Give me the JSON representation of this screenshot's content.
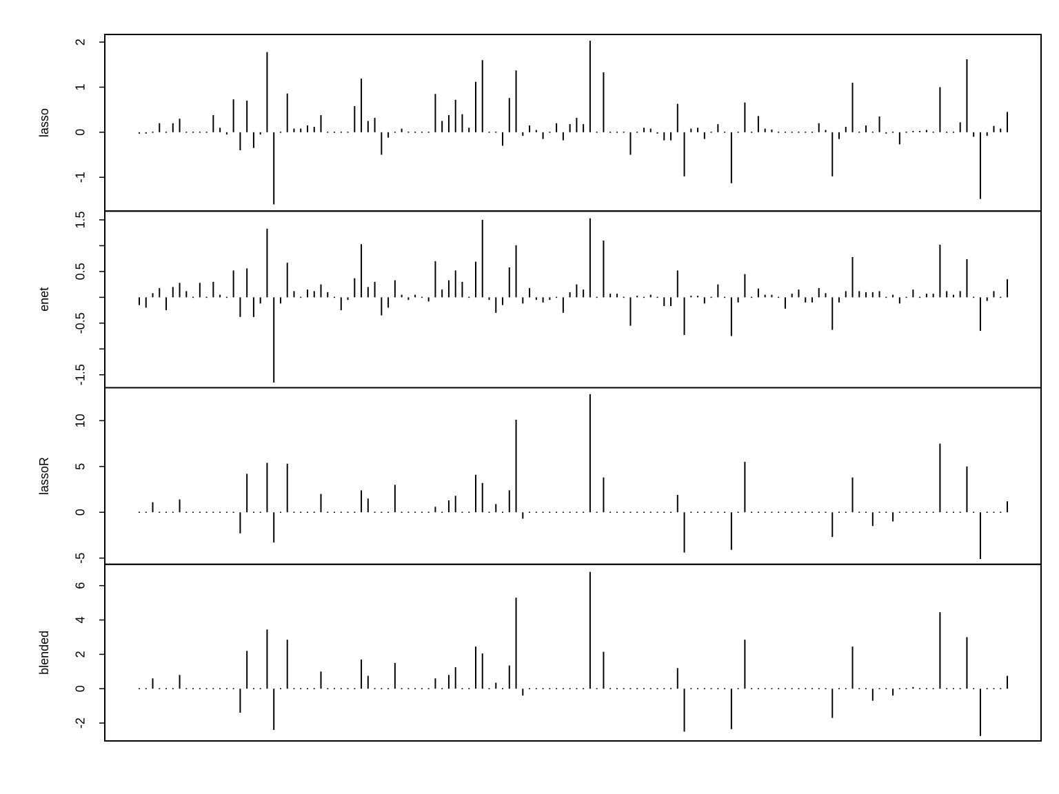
{
  "chart_data": [
    {
      "type": "spike",
      "ylabel": "lasso",
      "color": "#000000",
      "ylim": [
        -1.75,
        2.17
      ],
      "yticks": [
        -1,
        0,
        1,
        2
      ],
      "values": [
        -0.03,
        -0.03,
        0.02,
        0.2,
        0.02,
        0.2,
        0.3,
        0,
        0,
        0,
        0,
        0.38,
        0.1,
        -0.05,
        0.73,
        -0.4,
        0.7,
        -0.35,
        -0.05,
        1.78,
        -1.6,
        0,
        0.86,
        0.08,
        0.08,
        0.15,
        0.12,
        0.38,
        0.02,
        -0.02,
        -0.02,
        0,
        0.58,
        1.19,
        0.25,
        0.32,
        -0.5,
        -0.12,
        0,
        0.08,
        0,
        0,
        -0.02,
        0,
        0.85,
        0.25,
        0.38,
        0.72,
        0.4,
        0.1,
        1.12,
        1.6,
        0.02,
        0,
        -0.3,
        0.76,
        1.37,
        -0.08,
        0.15,
        0.05,
        -0.15,
        0.02,
        0.2,
        -0.18,
        0.18,
        0.32,
        0.18,
        2.03,
        0,
        1.33,
        0.02,
        0,
        0,
        -0.5,
        0.02,
        0.1,
        0.08,
        -0.03,
        -0.18,
        -0.18,
        0.63,
        -0.98,
        0.08,
        0.1,
        -0.15,
        0,
        0.18,
        0.02,
        -1.13,
        0,
        0.66,
        0.02,
        0.36,
        0.08,
        0.06,
        0,
        0,
        0,
        0,
        0,
        0,
        0.2,
        0.05,
        -0.98,
        -0.15,
        0.12,
        1.1,
        0,
        0.15,
        0,
        0.35,
        -0.03,
        0,
        -0.27,
        0.02,
        0.03,
        0.03,
        0.05,
        0,
        1.0,
        0,
        0.02,
        0.22,
        1.62,
        -0.1,
        -1.48,
        -0.08,
        0.14,
        0.08,
        0.45
      ]
    },
    {
      "type": "spike",
      "ylabel": "enet",
      "color": "#000000",
      "ylim": [
        -1.75,
        1.67
      ],
      "yticks": [
        -1.5,
        -0.5,
        0.5,
        1.5
      ],
      "yminor_ticks": [
        -1,
        0,
        1
      ],
      "values": [
        -0.15,
        -0.2,
        0.08,
        0.18,
        -0.25,
        0.2,
        0.28,
        0.12,
        0.02,
        0.28,
        0.02,
        0.3,
        0.05,
        0.02,
        0.52,
        -0.38,
        0.56,
        -0.38,
        -0.12,
        1.33,
        -1.65,
        -0.12,
        0.67,
        0.12,
        0.02,
        0.15,
        0.12,
        0.25,
        0.1,
        0.02,
        -0.25,
        -0.05,
        0.37,
        1.03,
        0.2,
        0.3,
        -0.35,
        -0.2,
        0.33,
        0.05,
        -0.05,
        0.05,
        0.02,
        -0.08,
        0.7,
        0.15,
        0.33,
        0.52,
        0.3,
        0.02,
        0.69,
        1.5,
        -0.05,
        -0.3,
        -0.15,
        0.58,
        1.01,
        -0.12,
        0.18,
        -0.05,
        -0.1,
        -0.05,
        0.02,
        -0.3,
        0.1,
        0.25,
        0.15,
        1.53,
        0.02,
        1.1,
        0.07,
        0.07,
        0,
        -0.55,
        0.03,
        0.02,
        0.05,
        0.02,
        -0.17,
        -0.17,
        0.52,
        -0.73,
        0.03,
        0.03,
        -0.12,
        0.02,
        0.25,
        0.02,
        -0.75,
        -0.1,
        0.45,
        0.02,
        0.17,
        0.05,
        0.05,
        0.02,
        -0.22,
        0.07,
        0.15,
        -0.1,
        -0.1,
        0.18,
        0.08,
        -0.63,
        -0.1,
        0.12,
        0.78,
        0.12,
        0.1,
        0.1,
        0.12,
        0.02,
        0.05,
        -0.12,
        0.02,
        0.15,
        0.02,
        0.07,
        0.07,
        1.02,
        0.12,
        0.05,
        0.12,
        0.74,
        -0.02,
        -0.65,
        -0.07,
        0.12,
        0.02,
        0.35
      ]
    },
    {
      "type": "spike",
      "ylabel": "lassoR",
      "color": "#000000",
      "ylim": [
        -5.68,
        13.6
      ],
      "yticks": [
        -5,
        0,
        5,
        10
      ],
      "values": [
        0,
        0,
        1.1,
        0,
        0,
        0,
        1.4,
        0,
        0,
        0,
        0,
        0,
        0,
        0,
        0,
        -2.3,
        4.2,
        0,
        0,
        5.4,
        -3.3,
        0,
        5.3,
        0,
        0,
        0,
        0,
        2.0,
        0,
        0,
        0,
        0,
        0,
        2.4,
        1.5,
        0,
        0,
        0,
        3.0,
        0,
        0,
        0,
        0,
        0,
        0.6,
        0,
        1.3,
        1.8,
        0,
        0,
        4.1,
        3.2,
        0,
        0.9,
        0,
        2.4,
        10.1,
        -0.7,
        0,
        0,
        0,
        0,
        0,
        0,
        0,
        0,
        0,
        12.9,
        0,
        3.8,
        0,
        0,
        0,
        0,
        0,
        0,
        0,
        0,
        0,
        0,
        1.9,
        -4.4,
        0,
        0,
        0,
        0,
        0,
        0,
        -4.1,
        0,
        5.5,
        0,
        0,
        0,
        0,
        0,
        0,
        0,
        0,
        0,
        0,
        0,
        0,
        -2.7,
        0,
        0,
        3.8,
        0,
        0,
        -1.5,
        0,
        0,
        -1.0,
        0,
        0,
        0.1,
        0,
        0,
        0,
        7.5,
        0,
        0,
        0,
        5.0,
        0,
        -5.1,
        0,
        0,
        0,
        1.2
      ]
    },
    {
      "type": "spike",
      "ylabel": "blended",
      "color": "#000000",
      "ylim": [
        -3.04,
        7.24
      ],
      "yticks": [
        -2,
        0,
        2,
        4,
        6
      ],
      "values": [
        0,
        0,
        0.6,
        0,
        0,
        0,
        0.8,
        0,
        0,
        0,
        0,
        0,
        0,
        0,
        0,
        -1.4,
        2.2,
        0,
        0,
        3.45,
        -2.4,
        0,
        2.85,
        0,
        0,
        0,
        0,
        1.0,
        0,
        0,
        0,
        0,
        0,
        1.7,
        0.75,
        0,
        0,
        0,
        1.5,
        0,
        0,
        0,
        0,
        0,
        0.6,
        0,
        0.8,
        1.25,
        0,
        0,
        2.45,
        2.05,
        0,
        0.35,
        0,
        1.35,
        5.3,
        -0.4,
        0,
        0,
        0,
        0,
        0,
        0,
        0,
        0,
        0,
        6.8,
        0,
        2.15,
        0,
        0,
        0,
        0,
        0,
        0,
        0,
        0,
        0,
        0,
        1.2,
        -2.5,
        0,
        0,
        0,
        0,
        0,
        0,
        -2.35,
        0,
        2.85,
        0,
        0,
        0,
        0,
        0,
        0,
        0,
        0,
        0,
        0,
        0,
        0,
        -1.7,
        0,
        0,
        2.45,
        0,
        0,
        -0.7,
        0,
        0,
        -0.4,
        0,
        0,
        0.1,
        0,
        0,
        0,
        4.45,
        0,
        0,
        0,
        3.0,
        0,
        -2.75,
        0,
        0,
        0,
        0.75
      ]
    }
  ]
}
